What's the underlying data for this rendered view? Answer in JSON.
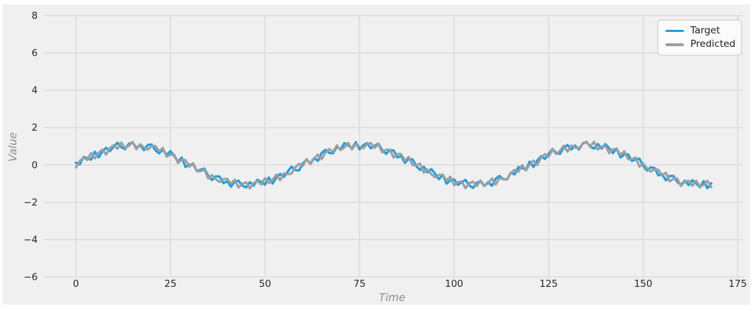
{
  "figure": {
    "page_background": "#ffffff",
    "background": "#f0f0f0",
    "grid_color": "#d8d8d8",
    "tick_label_color": "#262626",
    "axis_label_color": "#8c8c8c",
    "legend_background": "rgba(253,253,253,0.85)"
  },
  "chart_data": {
    "type": "line",
    "title": "",
    "xlabel": "Time",
    "ylabel": "Value",
    "xlim": [
      -8.4,
      176.4
    ],
    "ylim": [
      -6,
      8
    ],
    "xticks": [
      0,
      25,
      50,
      75,
      100,
      125,
      150,
      175
    ],
    "yticks": [
      -6,
      -4,
      -2,
      0,
      2,
      4,
      6,
      8
    ],
    "grid": true,
    "legend_position": "upper right",
    "x": {
      "start": 0,
      "step": 1,
      "count": 169
    },
    "series": [
      {
        "name": "Target",
        "color": "#17a0e6",
        "values": [
          0.12,
          0.03,
          0.43,
          0.37,
          0.28,
          0.71,
          0.4,
          0.72,
          0.92,
          0.74,
          0.98,
          1.19,
          0.95,
          0.84,
          1.13,
          1.21,
          0.91,
          1.07,
          0.79,
          1.07,
          1.1,
          0.79,
          0.62,
          0.82,
          0.54,
          0.74,
          0.48,
          0.17,
          0.4,
          -0.11,
          0.02,
          0.03,
          -0.33,
          -0.25,
          -0.2,
          -0.58,
          -0.81,
          -0.61,
          -0.62,
          -0.98,
          -0.87,
          -1.17,
          -0.89,
          -0.84,
          -1.1,
          -1.21,
          -0.92,
          -1.11,
          -0.79,
          -0.91,
          -1.06,
          -0.67,
          -1.0,
          -0.68,
          -0.48,
          -0.64,
          -0.36,
          -0.09,
          -0.27,
          -0.3,
          0.09,
          0.27,
          0.09,
          0.36,
          0.22,
          0.64,
          0.81,
          0.64,
          0.62,
          0.97,
          0.83,
          1.17,
          1.05,
          0.88,
          1.22,
          0.83,
          1.06,
          1.17,
          0.89,
          1.03,
          1.14,
          0.8,
          0.59,
          0.79,
          0.78,
          0.4,
          0.47,
          0.11,
          0.33,
          0.3,
          -0.06,
          -0.27,
          -0.1,
          -0.4,
          -0.22,
          -0.48,
          -0.77,
          -0.52,
          -1.0,
          -0.83,
          -0.77,
          -1.07,
          -0.93,
          -0.8,
          -1.09,
          -1.24,
          -0.95,
          -0.87,
          -1.13,
          -0.92,
          -1.12,
          -0.74,
          -0.59,
          -0.76,
          -0.78,
          -0.41,
          -0.51,
          -0.11,
          -0.17,
          -0.26,
          0.18,
          -0.11,
          0.24,
          0.46,
          0.32,
          0.6,
          0.85,
          0.65,
          0.59,
          0.94,
          1.07,
          0.83,
          1.04,
          0.82,
          1.15,
          1.24,
          0.98,
          0.87,
          1.12,
          0.88,
          1.12,
          0.9,
          0.63,
          0.88,
          0.4,
          0.55,
          0.57,
          0.21,
          0.29,
          0.34,
          -0.05,
          -0.3,
          -0.13,
          -0.16,
          -0.56,
          -0.49,
          -0.83,
          -0.59,
          -0.59,
          -0.91,
          -1.07,
          -0.84,
          -1.08,
          -0.82,
          -0.99,
          -1.2,
          -0.86,
          -1.25,
          -0.98
        ]
      },
      {
        "name": "Predicted",
        "color": "#9e9e9e",
        "values": [
          -0.14,
          0.2,
          0.39,
          0.27,
          0.64,
          0.35,
          0.65,
          0.82,
          0.56,
          0.91,
          1.06,
          0.87,
          1.2,
          0.91,
          1.02,
          1.23,
          0.84,
          1.11,
          0.93,
          0.82,
          1.0,
          1.02,
          0.73,
          0.91,
          0.44,
          0.56,
          0.55,
          0.1,
          0.28,
          0.26,
          -0.09,
          0.09,
          -0.34,
          -0.34,
          -0.25,
          -0.73,
          -0.54,
          -0.77,
          -0.92,
          -0.76,
          -0.74,
          -1.01,
          -0.79,
          -1.21,
          -1.01,
          -0.93,
          -1.26,
          -0.97,
          -0.85,
          -1.05,
          -0.71,
          -0.97,
          -0.8,
          -0.52,
          -0.82,
          -0.45,
          -0.5,
          -0.46,
          -0.13,
          0.06,
          -0.05,
          0.32,
          0.04,
          0.35,
          0.55,
          0.31,
          0.68,
          0.85,
          0.69,
          1.05,
          0.79,
          0.94,
          1.18,
          0.83,
          1.12,
          0.98,
          0.9,
          1.12,
          1.17,
          0.91,
          1.12,
          0.67,
          0.81,
          0.82,
          0.4,
          0.59,
          0.58,
          0.23,
          0.42,
          -0.01,
          -0.02,
          0.07,
          -0.42,
          -0.24,
          -0.5,
          -0.67,
          -0.53,
          -0.53,
          -0.83,
          -0.64,
          -1.09,
          -0.93,
          -0.88,
          -1.25,
          -0.98,
          -0.9,
          -1.13,
          -0.83,
          -1.12,
          -0.98,
          -0.73,
          -1.05,
          -0.7,
          -0.77,
          -0.76,
          -0.44,
          -0.26,
          -0.37,
          -0.01,
          -0.29,
          0.03,
          0.23,
          0.0,
          0.38,
          0.58,
          0.44,
          0.82,
          0.58,
          0.76,
          1.03,
          0.71,
          1.04,
          0.93,
          0.89,
          1.13,
          1.22,
          0.99,
          1.24,
          0.82,
          0.99,
          1.03,
          0.63,
          0.84,
          0.85,
          0.53,
          0.73,
          0.31,
          0.3,
          0.4,
          -0.09,
          0.08,
          -0.18,
          -0.36,
          -0.23,
          -0.26,
          -0.58,
          -0.41,
          -0.88,
          -0.75,
          -0.73,
          -1.13,
          -0.9,
          -0.85,
          -1.12,
          -0.84,
          -1.17,
          -1.06,
          -0.85,
          -1.2
        ]
      }
    ]
  }
}
